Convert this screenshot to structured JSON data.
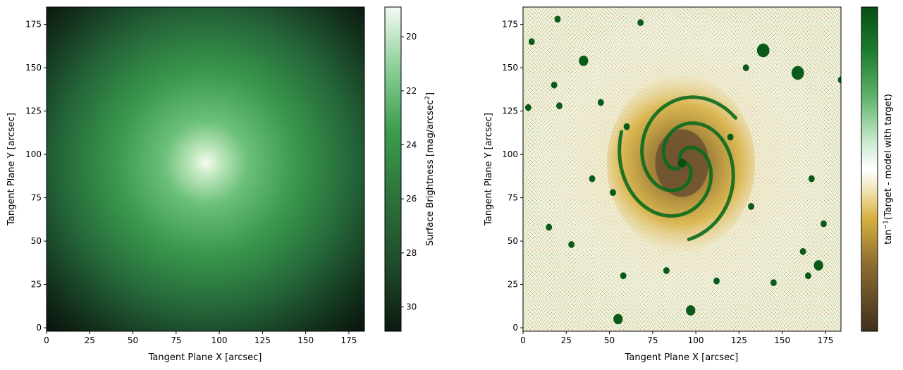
{
  "chart_data": [
    {
      "type": "heatmap",
      "title": "",
      "xlabel": "Tangent Plane X [arcsec]",
      "ylabel": "Tangent Plane Y [arcsec]",
      "xlim": [
        0,
        184
      ],
      "ylim": [
        -2,
        185
      ],
      "xticks": [
        0,
        25,
        50,
        75,
        100,
        125,
        150,
        175
      ],
      "yticks": [
        0,
        25,
        50,
        75,
        100,
        125,
        150,
        175
      ],
      "center": [
        92,
        95
      ],
      "description_values": {
        "core_mag": 19,
        "edge_mag": 31
      },
      "colorbar": {
        "label": "Surface Brightness [mag/arcsec",
        "label_sup": "2",
        "label_end": "]",
        "ticks": [
          20,
          22,
          24,
          26,
          28,
          30
        ],
        "range": [
          18.9,
          30.9
        ],
        "reversed": true,
        "colors": [
          "#0b1a0f",
          "#1f4a2a",
          "#2f7a3e",
          "#3c9d4e",
          "#8fd19a",
          "#f3faf3"
        ]
      },
      "colormap_colors": {
        "dark": "#0b1a0f",
        "mid": "#3c9d4e",
        "light": "#f7fcf5"
      }
    },
    {
      "type": "heatmap",
      "title": "",
      "xlabel": "Tangent Plane X [arcsec]",
      "ylabel": "Tangent Plane Y [arcsec]",
      "xlim": [
        0,
        184
      ],
      "ylim": [
        -2,
        185
      ],
      "xticks": [
        0,
        25,
        50,
        75,
        100,
        125,
        150,
        175
      ],
      "yticks": [
        0,
        25,
        50,
        75,
        100,
        125,
        150,
        175
      ],
      "center": [
        92,
        95
      ],
      "colorbar": {
        "label_pre": "tan",
        "label_sup": "−1",
        "label_post": "(Target - model with target)",
        "ticks": [],
        "colors": [
          "#3f2f1d",
          "#8a6a2e",
          "#d8b240",
          "#f5eccb",
          "#ffffff",
          "#cdebd0",
          "#5fb46c",
          "#1a7a2c",
          "#074d12"
        ]
      },
      "colormap_colors": {
        "brown": "#8a6a2e",
        "gold": "#d4a72c",
        "white": "#ffffff",
        "green": "#1f7a32",
        "dark_green": "#0a4f16"
      },
      "sources": [
        [
          139,
          160,
          4
        ],
        [
          159,
          147,
          4
        ],
        [
          35,
          154,
          3
        ],
        [
          55,
          5,
          3
        ],
        [
          97,
          10,
          3
        ],
        [
          171,
          36,
          3
        ],
        [
          20,
          178,
          2
        ],
        [
          5,
          165,
          2
        ],
        [
          3,
          127,
          2
        ],
        [
          21,
          128,
          2
        ],
        [
          184,
          143,
          2
        ],
        [
          162,
          44,
          2
        ],
        [
          167,
          86,
          2
        ],
        [
          165,
          30,
          2
        ],
        [
          28,
          48,
          2
        ],
        [
          129,
          150,
          2
        ],
        [
          112,
          27,
          2
        ],
        [
          145,
          26,
          2
        ],
        [
          45,
          130,
          2
        ],
        [
          40,
          86,
          2
        ],
        [
          68,
          176,
          2
        ],
        [
          83,
          33,
          2
        ],
        [
          52,
          78,
          2
        ],
        [
          18,
          140,
          2
        ],
        [
          174,
          60,
          2
        ],
        [
          120,
          110,
          2
        ],
        [
          58,
          30,
          2
        ],
        [
          132,
          70,
          2
        ],
        [
          15,
          58,
          2
        ],
        [
          60,
          116,
          2
        ]
      ]
    }
  ]
}
